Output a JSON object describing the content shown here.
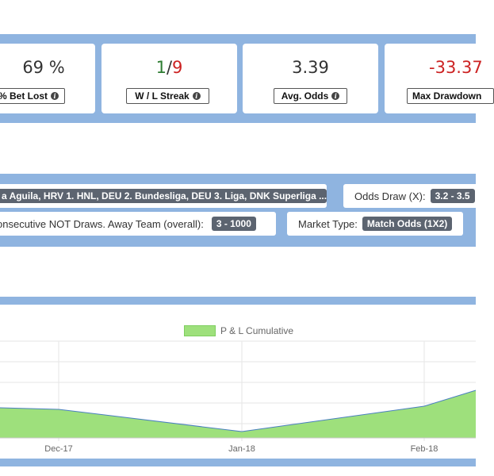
{
  "stats": [
    {
      "value": "69 %",
      "label": "% Bet Lost",
      "color": "#333333"
    },
    {
      "value_green": "1",
      "value_sep": "/",
      "value_red": "9",
      "label": "W / L Streak"
    },
    {
      "value": "3.39",
      "label": "Avg. Odds",
      "color": "#333333"
    },
    {
      "value": "-33.37",
      "label": "Max Drawdown",
      "color": "#cc2222"
    }
  ],
  "filters": {
    "leagues": {
      "value": "a Aguila, HRV 1. HNL, DEU 2. Bundesliga, DEU 3. Liga, DNK Superliga ..."
    },
    "odds_draw": {
      "label": "Odds Draw (X):",
      "value": "3.2 - 3.5"
    },
    "consecutive": {
      "label": "onsecutive NOT Draws. Away Team (overall):",
      "value": "3 - 1000"
    },
    "market_type": {
      "label": "Market Type:",
      "value": "Match Odds (1X2)"
    }
  },
  "chart_data": {
    "type": "area",
    "series": [
      {
        "name": "P & L Cumulative",
        "color": "#9ee07c"
      }
    ],
    "x_tick_labels": [
      "Dec-17",
      "Jan-18",
      "Feb-18"
    ],
    "legend": "top-center",
    "grid": true
  }
}
